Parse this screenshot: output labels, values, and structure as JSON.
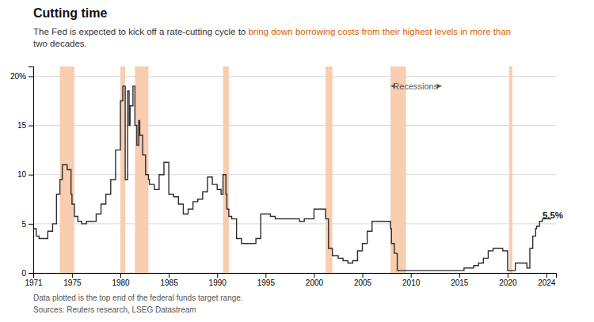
{
  "chart_data": {
    "type": "step",
    "title": "Cutting time",
    "subtitle": [
      [
        {
          "text": "The Fed is expected to kick off a rate-cutting cycle to "
        },
        {
          "text": "bring down borrowing costs from their highest levels in more than",
          "color": "#d95f00"
        }
      ],
      [
        {
          "text": "two decades."
        }
      ]
    ],
    "footnotes": [
      "Data plotted is the top end of the federal funds target range.",
      "Sources: Reuters research, LSEG Datastream"
    ],
    "annotations": [
      {
        "text": "5.5%",
        "x": 2023.6,
        "y": 5.9
      },
      {
        "text": "Recessions",
        "x": 2010.5,
        "y": 19.0,
        "arrows": [
          2007.9,
          2013.2
        ]
      }
    ],
    "bands": {
      "color": "#f8cdb0",
      "ranges": [
        [
          1973.75,
          1975.25
        ],
        [
          1980.0,
          1980.5
        ],
        [
          1981.5,
          1982.9
        ],
        [
          1990.6,
          1991.2
        ],
        [
          2001.2,
          2001.9
        ],
        [
          2007.9,
          2009.5
        ],
        [
          2020.15,
          2020.5
        ]
      ]
    },
    "xlim": [
      1971,
      2025
    ],
    "xticks": [
      1971,
      1975,
      1980,
      1985,
      1990,
      1995,
      2000,
      2005,
      2010,
      2015,
      2020,
      2024
    ],
    "ylim": [
      0,
      21.0
    ],
    "yticks": [
      0,
      5,
      10,
      15,
      {
        "value": 20,
        "label": "20%"
      }
    ],
    "grid": "y",
    "x": [
      1971.0,
      1971.3,
      1971.6,
      1972.0,
      1972.5,
      1973.0,
      1973.4,
      1973.75,
      1974.0,
      1974.5,
      1974.9,
      1975.0,
      1975.25,
      1975.6,
      1976.0,
      1976.5,
      1977.0,
      1977.5,
      1978.0,
      1978.5,
      1979.0,
      1979.5,
      1980.0,
      1980.25,
      1980.5,
      1980.75,
      1980.9,
      1981.0,
      1981.3,
      1981.5,
      1981.7,
      1981.9,
      1982.0,
      1982.3,
      1982.6,
      1982.9,
      1983.0,
      1983.5,
      1984.0,
      1984.5,
      1985.0,
      1985.5,
      1986.0,
      1986.5,
      1987.0,
      1987.5,
      1988.0,
      1988.5,
      1989.0,
      1989.5,
      1990.0,
      1990.4,
      1990.6,
      1990.9,
      1991.0,
      1991.2,
      1991.5,
      1992.0,
      1992.5,
      1993.0,
      1993.5,
      1994.0,
      1994.5,
      1995.0,
      1995.5,
      1996.0,
      1996.5,
      1997.0,
      1997.5,
      1998.0,
      1998.5,
      1999.0,
      1999.5,
      2000.0,
      2000.5,
      2001.0,
      2001.2,
      2001.5,
      2001.9,
      2002.0,
      2002.5,
      2003.0,
      2003.5,
      2004.0,
      2004.5,
      2005.0,
      2005.5,
      2006.0,
      2006.5,
      2007.0,
      2007.5,
      2007.9,
      2008.0,
      2008.3,
      2008.6,
      2008.9,
      2009.0,
      2009.5,
      2010.0,
      2011.0,
      2012.0,
      2013.0,
      2014.0,
      2015.0,
      2015.5,
      2016.0,
      2016.5,
      2017.0,
      2017.5,
      2018.0,
      2018.5,
      2019.0,
      2019.5,
      2020.0,
      2020.15,
      2020.5,
      2020.8,
      2021.0,
      2021.5,
      2022.0,
      2022.3,
      2022.6,
      2022.9,
      2023.0,
      2023.3,
      2023.6,
      2023.9,
      2024.0,
      2024.5
    ],
    "series": [
      {
        "color": "#2d2d2d",
        "values": [
          4.5,
          3.75,
          3.5,
          3.5,
          4.25,
          5.0,
          8.0,
          9.5,
          11.0,
          10.5,
          8.0,
          7.0,
          5.75,
          5.25,
          5.0,
          5.25,
          5.25,
          6.0,
          7.0,
          8.0,
          9.5,
          12.5,
          17.5,
          19.0,
          9.5,
          18.5,
          15.0,
          17.0,
          19.0,
          15.0,
          13.0,
          15.5,
          14.0,
          12.0,
          10.0,
          9.5,
          9.0,
          8.5,
          10.0,
          11.25,
          8.0,
          7.75,
          7.0,
          6.0,
          6.5,
          7.25,
          7.5,
          8.25,
          9.75,
          9.0,
          8.5,
          8.0,
          10.0,
          8.0,
          6.5,
          5.75,
          5.5,
          3.5,
          3.0,
          3.0,
          3.0,
          3.5,
          6.0,
          6.0,
          5.75,
          5.5,
          5.5,
          5.5,
          5.5,
          5.5,
          5.25,
          5.5,
          5.5,
          6.5,
          6.5,
          6.5,
          5.5,
          2.5,
          1.75,
          1.75,
          1.5,
          1.25,
          1.0,
          1.25,
          2.25,
          3.0,
          4.25,
          5.25,
          5.25,
          5.25,
          5.25,
          4.5,
          3.0,
          2.0,
          0.25,
          0.25,
          0.25,
          0.25,
          0.25,
          0.25,
          0.25,
          0.25,
          0.25,
          0.25,
          0.5,
          0.5,
          0.75,
          1.0,
          1.5,
          2.25,
          2.5,
          2.5,
          2.25,
          0.25,
          0.25,
          0.25,
          1.0,
          1.0,
          1.0,
          0.5,
          2.5,
          3.75,
          4.5,
          4.75,
          5.25,
          5.5,
          5.5,
          5.5,
          5.5
        ]
      }
    ]
  }
}
